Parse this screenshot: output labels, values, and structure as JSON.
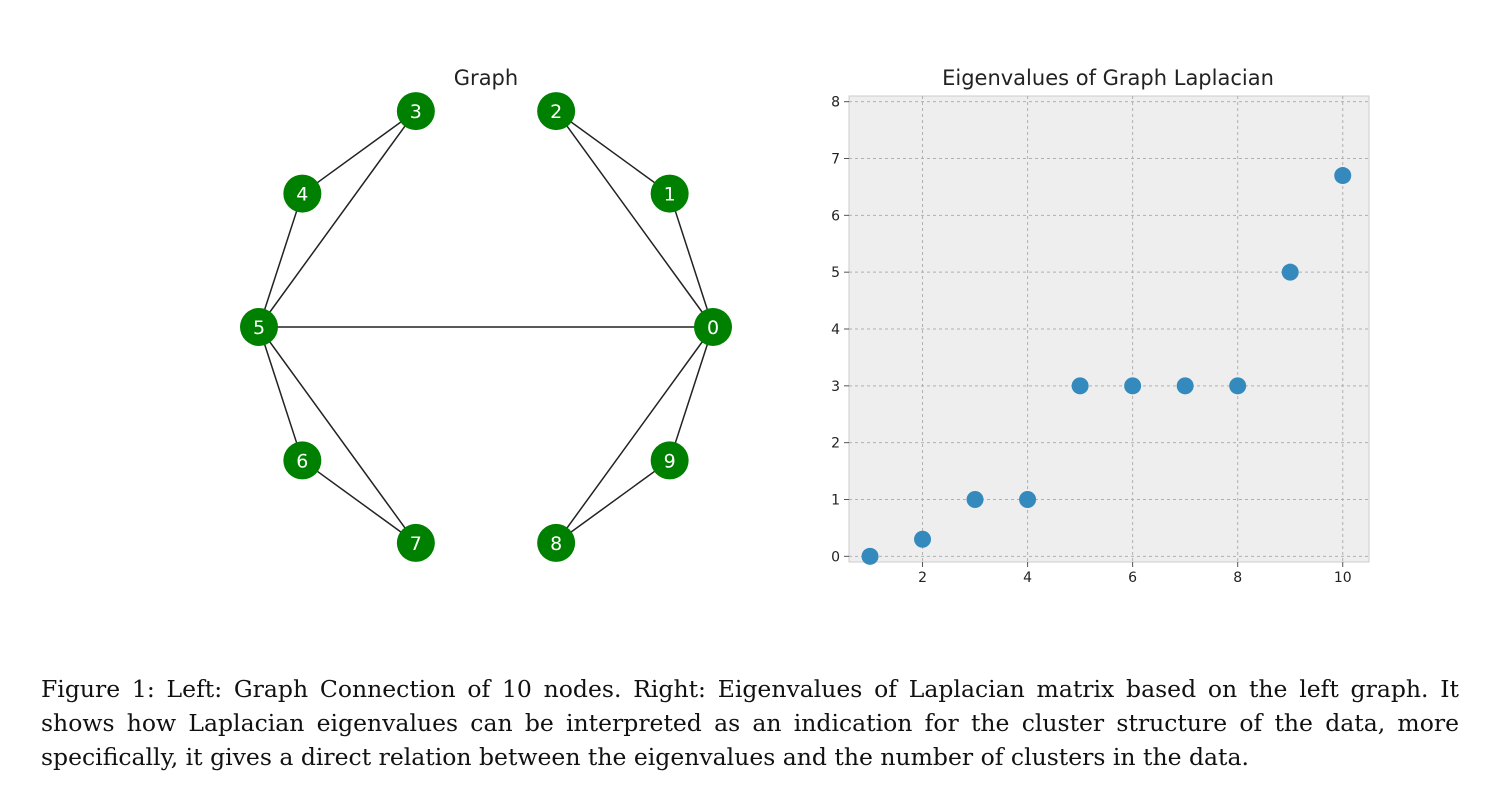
{
  "figure": {
    "graph": {
      "title": "Graph",
      "node_color": "#008000",
      "edge_color": "#222222",
      "nodes": [
        "0",
        "1",
        "2",
        "3",
        "4",
        "5",
        "6",
        "7",
        "8",
        "9"
      ],
      "edges": [
        [
          "0",
          "1"
        ],
        [
          "0",
          "2"
        ],
        [
          "1",
          "2"
        ],
        [
          "3",
          "4"
        ],
        [
          "3",
          "5"
        ],
        [
          "4",
          "5"
        ],
        [
          "0",
          "5"
        ],
        [
          "5",
          "6"
        ],
        [
          "5",
          "7"
        ],
        [
          "6",
          "7"
        ],
        [
          "0",
          "8"
        ],
        [
          "0",
          "9"
        ],
        [
          "8",
          "9"
        ]
      ]
    },
    "caption": "Figure 1: Left: Graph Connection of 10 nodes. Right: Eigenvalues of Laplacian matrix based on the left graph. It shows how Laplacian eigenvalues can be interpreted as an indication for the cluster structure of the data, more specifically, it gives a direct relation between the eigenvalues and the number of clusters in the data."
  },
  "chart_data": {
    "type": "scatter",
    "title": "Eigenvalues of Graph Laplacian",
    "xlabel": "",
    "ylabel": "",
    "x": [
      1,
      2,
      3,
      4,
      5,
      6,
      7,
      8,
      9,
      10
    ],
    "y": [
      0,
      0.3,
      1,
      1,
      3,
      3,
      3,
      3,
      5,
      6.7
    ],
    "xlim": [
      0.6,
      10.5
    ],
    "ylim": [
      -0.1,
      8.1
    ],
    "xticks": [
      2,
      4,
      6,
      8,
      10
    ],
    "yticks": [
      0,
      1,
      2,
      3,
      4,
      5,
      6,
      7,
      8
    ],
    "grid": true,
    "point_color": "#348abd",
    "background_color": "#eeeeee"
  }
}
